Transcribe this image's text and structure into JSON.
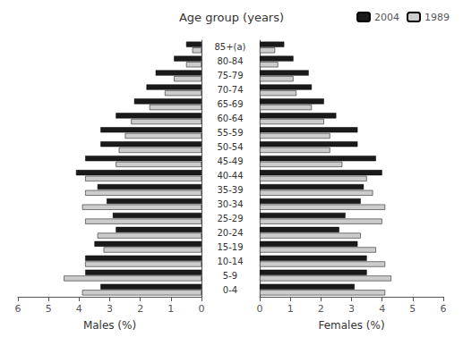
{
  "chart_data": [
    {
      "type": "bar",
      "orientation": "horizontal",
      "title": "Age group (years)",
      "xlabel": "Males (%)",
      "categories": [
        "0-4",
        "5-9",
        "10-14",
        "15-19",
        "20-24",
        "25-29",
        "30-34",
        "35-39",
        "40-44",
        "45-49",
        "50-54",
        "55-59",
        "60-64",
        "65-69",
        "70-74",
        "75-79",
        "80-84",
        "85+(a)"
      ],
      "series": [
        {
          "name": "2004",
          "color": "#1a1a1a",
          "values": [
            3.3,
            3.8,
            3.8,
            3.5,
            2.8,
            2.9,
            3.1,
            3.4,
            4.1,
            3.8,
            3.3,
            3.3,
            2.8,
            2.2,
            1.8,
            1.5,
            0.9,
            0.5
          ]
        },
        {
          "name": "1989",
          "color": "#cccccc",
          "values": [
            3.9,
            4.5,
            3.8,
            3.2,
            3.4,
            3.8,
            3.9,
            3.8,
            3.8,
            2.8,
            2.7,
            2.5,
            2.3,
            1.7,
            1.2,
            0.9,
            0.5,
            0.3
          ]
        }
      ],
      "xlim": [
        6,
        0
      ],
      "xticks": [
        0,
        1,
        2,
        3,
        4,
        5,
        6
      ],
      "grid": false
    },
    {
      "type": "bar",
      "orientation": "horizontal",
      "xlabel": "Females (%)",
      "categories": [
        "0-4",
        "5-9",
        "10-14",
        "15-19",
        "20-24",
        "25-29",
        "30-34",
        "35-39",
        "40-44",
        "45-49",
        "50-54",
        "55-59",
        "60-64",
        "65-69",
        "70-74",
        "75-79",
        "80-84",
        "85+(a)"
      ],
      "series": [
        {
          "name": "2004",
          "color": "#1a1a1a",
          "values": [
            3.1,
            3.5,
            3.5,
            3.2,
            2.6,
            2.8,
            3.3,
            3.4,
            4.0,
            3.8,
            3.2,
            3.2,
            2.5,
            2.1,
            1.7,
            1.6,
            1.1,
            0.8
          ]
        },
        {
          "name": "1989",
          "color": "#cccccc",
          "values": [
            4.1,
            4.3,
            4.1,
            3.8,
            3.3,
            4.0,
            4.1,
            3.7,
            3.5,
            2.7,
            2.3,
            2.3,
            2.1,
            1.7,
            1.2,
            1.1,
            0.6,
            0.5
          ]
        }
      ],
      "xlim": [
        0,
        6
      ],
      "xticks": [
        0,
        1,
        2,
        3,
        4,
        5,
        6
      ],
      "grid": false,
      "tick_labels": "x",
      "legend": "upper right"
    }
  ]
}
